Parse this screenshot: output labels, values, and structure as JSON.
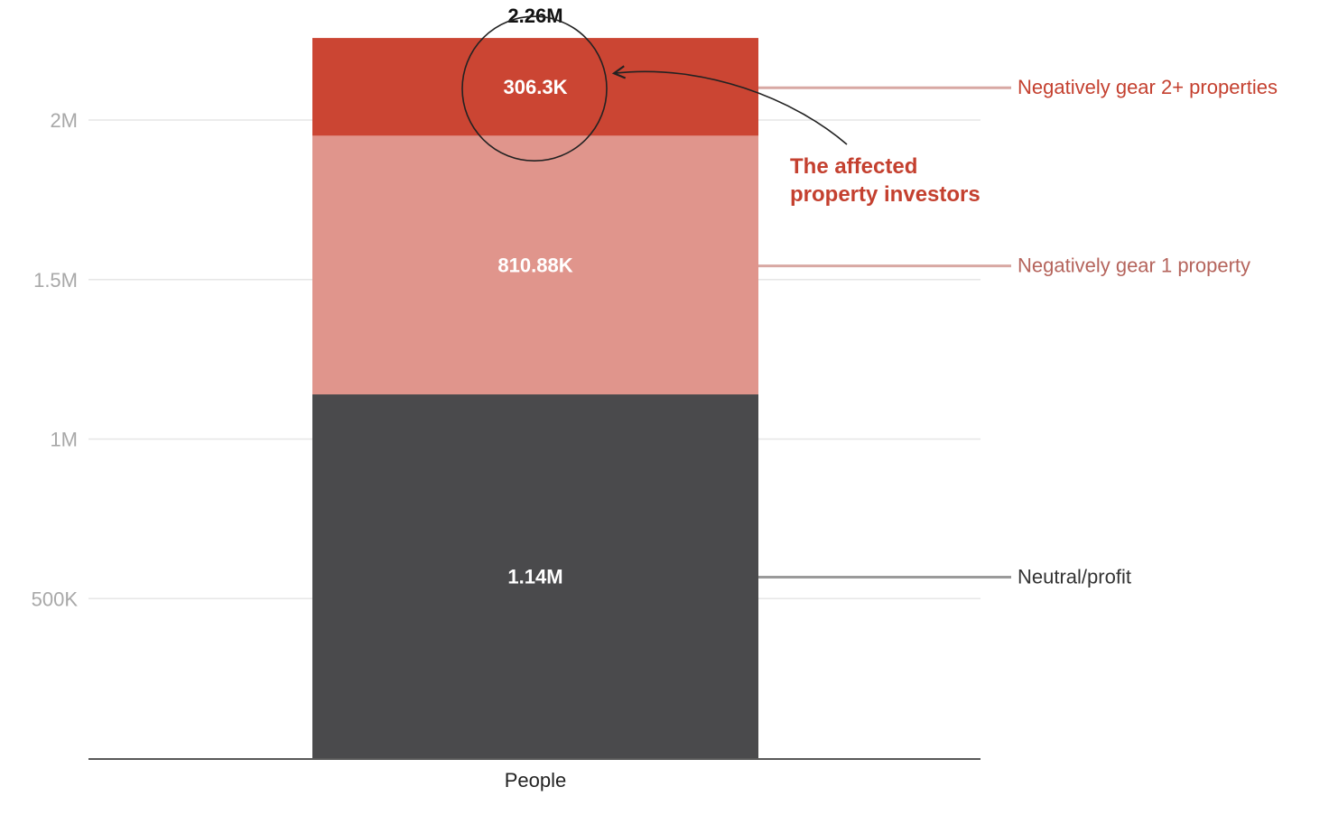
{
  "chart_data": {
    "type": "bar",
    "stacked": true,
    "categories": [
      "People"
    ],
    "series": [
      {
        "name": "Neutral/profit",
        "values": [
          1140000
        ],
        "value_label": "1.14M",
        "color": "#4a4a4c",
        "legend_color": "#9a9a9a",
        "text_color": "#333333"
      },
      {
        "name": "Negatively gear 1 property",
        "values": [
          810880
        ],
        "value_label": "810.88K",
        "color": "#e0958c",
        "legend_color": "#d8a8a3",
        "text_color": "#b5645c"
      },
      {
        "name": "Negatively gear 2+ properties",
        "values": [
          306300
        ],
        "value_label": "306.3K",
        "color": "#cb4533",
        "legend_color": "#d8a8a3",
        "text_color": "#c4402f"
      }
    ],
    "total_label": "2.26M",
    "yticks": [
      {
        "value": 500000,
        "label": "500K"
      },
      {
        "value": 1000000,
        "label": "1M"
      },
      {
        "value": 1500000,
        "label": "1.5M"
      },
      {
        "value": 2000000,
        "label": "2M"
      }
    ],
    "ylim": [
      0,
      2350000
    ],
    "grid": true,
    "legend_placement": "right, direct labels",
    "annotation": {
      "lines": [
        "The affected",
        "property investors"
      ],
      "color": "#c4402f",
      "target_series": "Negatively gear 2+ properties"
    },
    "title": "",
    "xlabel": "",
    "ylabel": ""
  }
}
